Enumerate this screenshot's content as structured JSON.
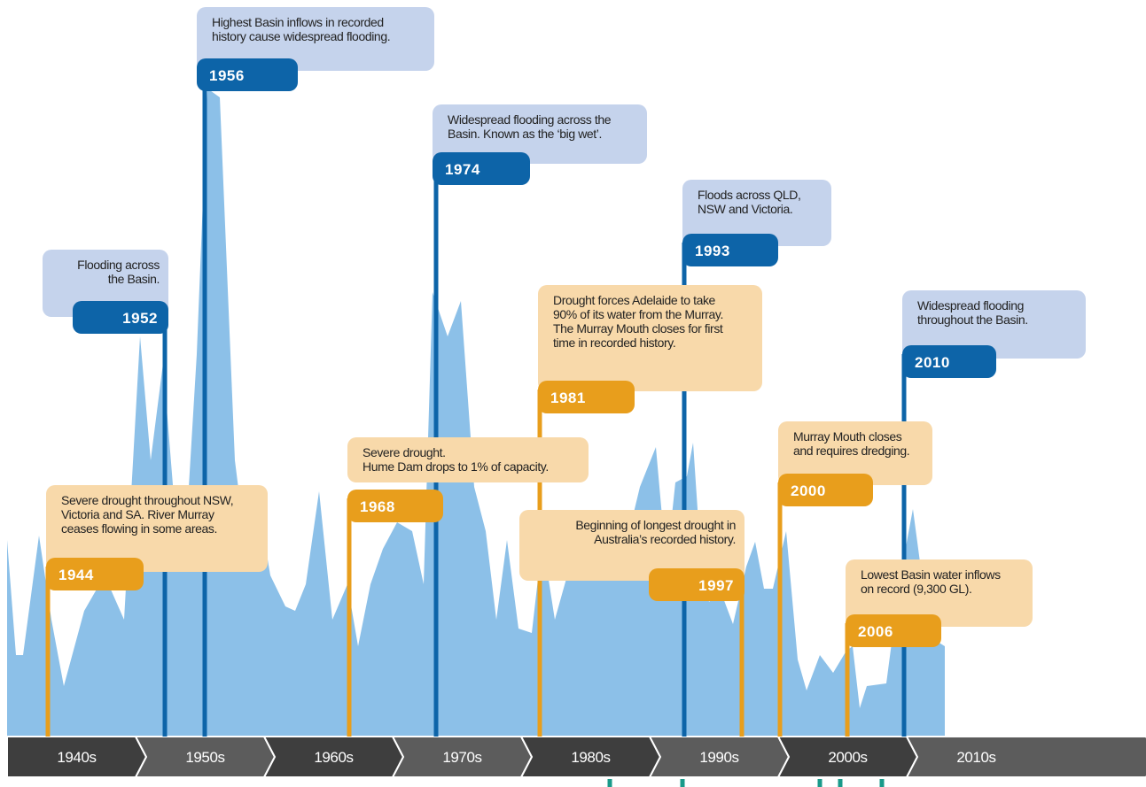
{
  "decades": [
    "1940s",
    "1950s",
    "1960s",
    "1970s",
    "1980s",
    "1990s",
    "2000s",
    "2010s"
  ],
  "events": [
    {
      "year": "1956",
      "kind": "flood",
      "lines": [
        "Highest Basin inflows in recorded",
        "history cause widespread flooding."
      ]
    },
    {
      "year": "1974",
      "kind": "flood",
      "lines": [
        "Widespread flooding across the",
        "Basin. Known as the ‘big wet’."
      ]
    },
    {
      "year": "1993",
      "kind": "flood",
      "lines": [
        "Floods across QLD,",
        "NSW and Victoria."
      ]
    },
    {
      "year": "1952",
      "kind": "flood",
      "lines": [
        "Flooding across",
        "the Basin."
      ]
    },
    {
      "year": "2010",
      "kind": "flood",
      "lines": [
        "Widespread flooding",
        "throughout the Basin."
      ]
    },
    {
      "year": "1981",
      "kind": "drought",
      "lines": [
        "Drought forces Adelaide to take",
        "90% of its water from the Murray.",
        "The Murray Mouth closes for first",
        "time in recorded history."
      ]
    },
    {
      "year": "1968",
      "kind": "drought",
      "lines": [
        "Severe drought.",
        "Hume Dam drops to 1% of capacity."
      ]
    },
    {
      "year": "2000",
      "kind": "drought",
      "lines": [
        "Murray Mouth closes",
        "and requires dredging."
      ]
    },
    {
      "year": "1944",
      "kind": "drought",
      "lines": [
        "Severe drought throughout NSW,",
        "Victoria and SA. River Murray",
        "ceases flowing in some areas."
      ]
    },
    {
      "year": "1997",
      "kind": "drought",
      "lines": [
        "Beginning of longest drought in",
        "Australia’s recorded history."
      ]
    },
    {
      "year": "2006",
      "kind": "drought",
      "lines": [
        "Lowest Basin water inflows",
        "on record (9,300 GL)."
      ]
    }
  ]
}
